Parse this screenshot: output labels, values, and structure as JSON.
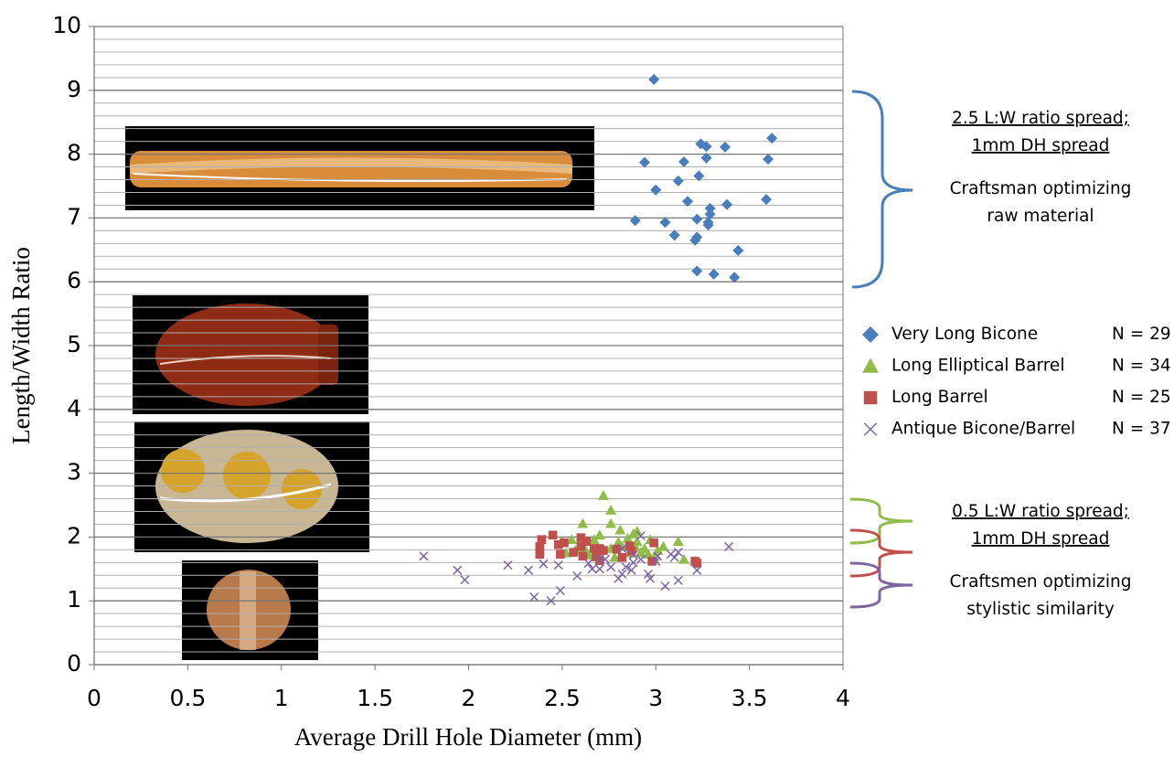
{
  "chart_data": {
    "type": "scatter",
    "x_label": "Average Drill Hole Diameter (mm)",
    "y_label": "Length/Width Ratio",
    "xlim": [
      0,
      4
    ],
    "xticks": [
      0,
      0.5,
      1,
      1.5,
      2,
      2.5,
      3,
      3.5,
      4
    ],
    "ylim": [
      0,
      10
    ],
    "yticks": [
      0,
      1,
      2,
      3,
      4,
      5,
      6,
      7,
      8,
      9,
      10
    ],
    "y_minor_ticks": [
      0.2,
      0.4,
      0.6,
      0.8,
      1.2,
      1.4,
      1.6,
      1.8,
      2.2,
      2.4,
      2.6,
      2.8,
      3.2,
      3.4,
      3.6,
      3.8,
      4.2,
      4.4,
      4.6,
      4.8,
      5.2,
      5.4,
      5.6,
      5.8,
      6.2,
      6.4,
      6.6,
      6.8,
      7.2,
      7.4,
      7.6,
      7.8,
      8.2,
      8.4,
      8.6,
      8.8,
      9.2,
      9.4,
      9.6,
      9.8
    ],
    "grid": true,
    "series": [
      {
        "name": "Very Long Bicone",
        "n_label": "N = 29",
        "color": "#4a7ebb",
        "marker": "diamond",
        "x": [
          2.99,
          3.62,
          3.24,
          3.27,
          3.37,
          2.94,
          3.15,
          3.27,
          3.6,
          3.23,
          3.12,
          3.0,
          3.17,
          3.59,
          3.38,
          3.29,
          3.29,
          2.89,
          3.05,
          3.22,
          3.28,
          3.28,
          3.1,
          3.22,
          3.21,
          3.44,
          3.22,
          3.31,
          3.42
        ],
        "y": [
          9.17,
          8.25,
          8.16,
          8.12,
          8.11,
          7.87,
          7.88,
          7.94,
          7.92,
          7.66,
          7.58,
          7.44,
          7.26,
          7.29,
          7.21,
          7.15,
          7.06,
          6.96,
          6.93,
          6.98,
          6.93,
          6.89,
          6.73,
          6.7,
          6.65,
          6.49,
          6.17,
          6.12,
          6.07
        ]
      },
      {
        "name": "Long Elliptical Barrel",
        "n_label": "N = 34",
        "color": "#8fbc4a",
        "marker": "triangle",
        "x": [
          2.72,
          2.76,
          2.76,
          2.61,
          2.55,
          2.7,
          2.81,
          2.88,
          2.9,
          2.85,
          2.97,
          3.12,
          2.5,
          2.62,
          2.76,
          2.82,
          2.89,
          2.94,
          3.01,
          2.69,
          2.86,
          2.92,
          2.96,
          2.99,
          2.78,
          3.15,
          3.21,
          2.57,
          2.64,
          2.8,
          2.9,
          3.04,
          2.67,
          2.52
        ],
        "y": [
          2.65,
          2.42,
          2.21,
          2.21,
          1.96,
          2.03,
          2.11,
          2.05,
          2.09,
          1.98,
          1.96,
          1.93,
          1.93,
          1.82,
          1.82,
          1.85,
          1.85,
          1.82,
          1.79,
          1.76,
          1.75,
          1.76,
          1.73,
          1.68,
          1.68,
          1.65,
          1.62,
          1.79,
          1.72,
          1.92,
          1.93,
          1.85,
          1.96,
          1.75
        ]
      },
      {
        "name": "Long Barrel",
        "n_label": "N = 25",
        "color": "#c0504d",
        "marker": "square",
        "x": [
          2.45,
          2.39,
          2.38,
          2.38,
          2.48,
          2.49,
          2.51,
          2.6,
          2.6,
          2.61,
          2.67,
          2.7,
          2.72,
          2.68,
          2.7,
          2.79,
          2.86,
          2.87,
          2.99,
          2.98,
          3.21,
          3.22,
          2.56,
          2.82,
          2.63
        ],
        "y": [
          2.03,
          1.96,
          1.85,
          1.73,
          1.88,
          1.73,
          1.91,
          1.99,
          1.85,
          1.7,
          1.82,
          1.82,
          1.79,
          1.69,
          1.63,
          1.81,
          1.86,
          1.78,
          1.91,
          1.62,
          1.62,
          1.59,
          1.76,
          1.68,
          1.93
        ]
      },
      {
        "name": "Antique Bicone/Barrel",
        "n_label": "N = 37",
        "color": "#8064a2",
        "marker": "x",
        "x": [
          1.76,
          1.94,
          1.98,
          2.21,
          2.32,
          2.35,
          2.4,
          2.44,
          2.49,
          2.48,
          2.58,
          2.64,
          2.66,
          2.7,
          2.73,
          2.76,
          2.8,
          2.82,
          2.84,
          2.87,
          2.88,
          2.92,
          2.92,
          2.96,
          2.97,
          3.0,
          3.01,
          3.05,
          3.08,
          3.1,
          3.12,
          3.12,
          3.22,
          3.39,
          2.82,
          2.7,
          2.88
        ],
        "y": [
          1.7,
          1.48,
          1.33,
          1.56,
          1.48,
          1.06,
          1.58,
          1.0,
          1.16,
          1.56,
          1.39,
          1.59,
          1.5,
          1.5,
          1.65,
          1.53,
          1.35,
          1.42,
          1.53,
          1.48,
          1.6,
          1.65,
          2.02,
          1.42,
          1.35,
          1.62,
          1.7,
          1.23,
          1.73,
          1.68,
          1.32,
          1.76,
          1.48,
          1.85,
          1.82,
          1.65,
          1.72
        ]
      }
    ],
    "annotations": [
      {
        "heading": [
          "2.5 L:W ratio spread;",
          "1mm DH spread"
        ],
        "text": [
          "Craftsman optimizing",
          "raw material"
        ]
      },
      {
        "heading": [
          "0.5 L:W ratio spread;",
          "1mm DH spread"
        ],
        "text": [
          "Craftsmen optimizing",
          "stylistic similarity"
        ]
      }
    ]
  }
}
